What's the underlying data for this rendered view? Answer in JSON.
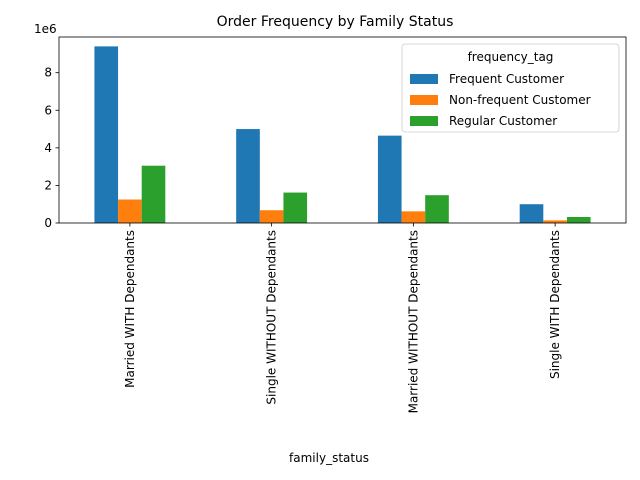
{
  "chart_data": {
    "type": "bar",
    "title": "Order Frequency by Family Status",
    "xlabel": "family_status",
    "ylabel": "",
    "y_offset_label": "1e6",
    "categories": [
      "Married WITH Dependants",
      "Single WITHOUT Dependants",
      "Married WITHOUT Dependants",
      "Single WITH Dependants"
    ],
    "series": [
      {
        "name": "Frequent Customer",
        "color": "#1f77b4",
        "values": [
          9400000,
          5000000,
          4650000,
          1000000
        ]
      },
      {
        "name": "Non-frequent Customer",
        "color": "#ff7f0e",
        "values": [
          1250000,
          680000,
          620000,
          140000
        ]
      },
      {
        "name": "Regular Customer",
        "color": "#2ca02c",
        "values": [
          3050000,
          1620000,
          1480000,
          320000
        ]
      }
    ],
    "ylim": [
      0,
      9900000
    ],
    "yticks": [
      0,
      2000000,
      4000000,
      6000000,
      8000000
    ],
    "ytick_labels": [
      "0",
      "2",
      "4",
      "6",
      "8"
    ],
    "grid": false,
    "legend": {
      "title": "frequency_tag",
      "placement": "top-right"
    },
    "x_tick_rotation": "vertical"
  }
}
